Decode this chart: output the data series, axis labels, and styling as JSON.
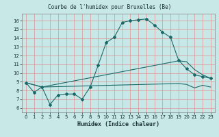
{
  "title": "Courbe de l'humidex pour Bruxelles (Be)",
  "xlabel": "Humidex (Indice chaleur)",
  "bg_color": "#c8e8e8",
  "plot_bg_color": "#c8e8e8",
  "grid_color": "#e09090",
  "line_color": "#1a6868",
  "xlim": [
    -0.5,
    23.5
  ],
  "ylim": [
    5.5,
    16.8
  ],
  "xticks": [
    0,
    1,
    2,
    3,
    4,
    5,
    6,
    7,
    8,
    9,
    10,
    11,
    12,
    13,
    14,
    15,
    16,
    17,
    18,
    19,
    20,
    21,
    22,
    23
  ],
  "yticks": [
    6,
    7,
    8,
    9,
    10,
    11,
    12,
    13,
    14,
    15,
    16
  ],
  "line1_x": [
    0,
    1,
    2,
    3,
    4,
    5,
    6,
    7,
    8,
    9,
    10,
    11,
    12,
    13,
    14,
    15,
    16,
    17,
    18,
    19,
    20,
    21,
    22,
    23
  ],
  "line1_y": [
    8.9,
    7.8,
    8.4,
    6.4,
    7.5,
    7.6,
    7.6,
    7.0,
    8.4,
    10.9,
    13.5,
    14.1,
    15.8,
    16.0,
    16.1,
    16.2,
    15.5,
    14.7,
    14.1,
    11.5,
    10.5,
    9.8,
    9.6,
    9.4
  ],
  "line2_x": [
    0,
    2,
    19,
    20,
    21,
    22,
    23
  ],
  "line2_y": [
    8.9,
    8.4,
    11.4,
    11.3,
    10.4,
    9.8,
    9.4
  ],
  "line3_x": [
    0,
    2,
    19,
    20,
    21,
    22,
    23
  ],
  "line3_y": [
    8.9,
    8.4,
    8.8,
    8.7,
    8.3,
    8.6,
    8.4
  ]
}
